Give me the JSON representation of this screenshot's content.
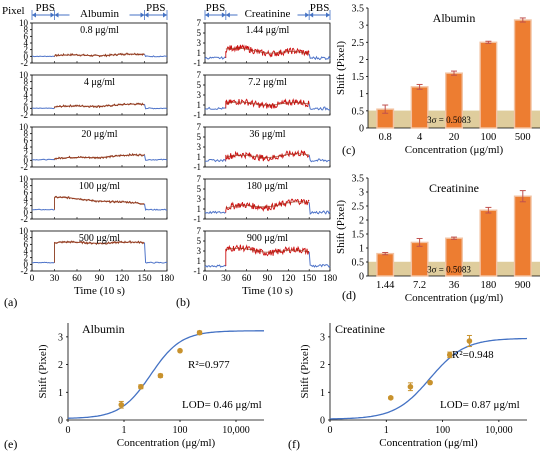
{
  "figure": {
    "panel_labels": [
      "(a)",
      "(b)",
      "(c)",
      "(d)",
      "(e)",
      "(f)"
    ],
    "time_axis": {
      "label": "Time (10 s)",
      "ticks": [
        "0",
        "30",
        "60",
        "90",
        "120",
        "150",
        "180"
      ]
    },
    "pixel_label": "Pixel",
    "phase_labels": {
      "buffer": "PBS",
      "albumin": "Albumin",
      "creatinine": "Creatinine"
    },
    "colors": {
      "baseline": "#4f74c9",
      "albumin_signal": "#8c3b1f",
      "creatinine_signal": "#cc1111",
      "fit_line": "#9a3b1e",
      "bar": "#ed7d31",
      "bar_edge": "#f2c3a4",
      "threshold_band": "#d9c48c",
      "scatter": "#c8922d",
      "curve": "#4472c4",
      "arrow": "#4472c4"
    }
  },
  "chart_data": [
    {
      "panel": "(a)",
      "type": "line",
      "analyte": "Albumin",
      "xlabel": "Time (10 s)",
      "ylabel": "Pixel",
      "xlim": [
        0,
        180
      ],
      "traces": [
        {
          "concentration": "0.8 μg/ml",
          "ylim": [
            -2,
            10
          ],
          "yticks": [
            "-2",
            "0",
            "2",
            "4",
            "6",
            "8",
            "10"
          ],
          "pbs_level": 0,
          "signal_start": 0.2,
          "signal_end": 0.6
        },
        {
          "concentration": "4 μg/ml",
          "ylim": [
            -2,
            10
          ],
          "yticks": [
            "-2",
            "0",
            "2",
            "4",
            "6",
            "8",
            "10"
          ],
          "pbs_level": 0,
          "signal_start": 0.4,
          "signal_end": 1.2
        },
        {
          "concentration": "20 μg/ml",
          "ylim": [
            -2,
            10
          ],
          "yticks": [
            "-2",
            "0",
            "2",
            "4",
            "6",
            "8",
            "10"
          ],
          "pbs_level": 0.2,
          "signal_start": 0.5,
          "signal_end": 1.6
        },
        {
          "concentration": "100 μg/ml",
          "ylim": [
            -2,
            10
          ],
          "yticks": [
            "-2",
            "0",
            "2",
            "4",
            "6",
            "8",
            "10"
          ],
          "pbs_level": 0.8,
          "signal_start": 4.5,
          "signal_end": 2.5
        },
        {
          "concentration": "500 μg/ml",
          "ylim": [
            -2,
            10
          ],
          "yticks": [
            "-2",
            "0",
            "2",
            "4",
            "6",
            "8",
            "10"
          ],
          "pbs_level": 0.5,
          "signal_start": 6.5,
          "signal_end": 6.5
        }
      ]
    },
    {
      "panel": "(b)",
      "type": "line",
      "analyte": "Creatinine",
      "xlabel": "Time (10 s)",
      "xlim": [
        0,
        180
      ],
      "traces": [
        {
          "concentration": "1.44 μg/ml",
          "ylim": [
            -1,
            7
          ],
          "yticks": [
            "-1",
            "1",
            "3",
            "5",
            "7"
          ],
          "pbs_level": 0,
          "signal_start": 1.8,
          "signal_end": 0.8
        },
        {
          "concentration": "7.2 μg/ml",
          "ylim": [
            -1,
            7
          ],
          "yticks": [
            "-1",
            "1",
            "3",
            "5",
            "7"
          ],
          "pbs_level": 0.3,
          "signal_start": 1.3,
          "signal_end": 1.2
        },
        {
          "concentration": "36 μg/ml",
          "ylim": [
            -1,
            7
          ],
          "yticks": [
            "-1",
            "1",
            "3",
            "5",
            "7"
          ],
          "pbs_level": 0.3,
          "signal_start": 1.0,
          "signal_end": 1.4
        },
        {
          "concentration": "180 μg/ml",
          "ylim": [
            -1,
            7
          ],
          "yticks": [
            "-1",
            "1",
            "3",
            "5",
            "7"
          ],
          "pbs_level": 0.3,
          "signal_start": 1.2,
          "signal_end": 2.3
        },
        {
          "concentration": "900 μg/ml",
          "ylim": [
            -1,
            7
          ],
          "yticks": [
            "-1",
            "1",
            "3",
            "5",
            "7"
          ],
          "pbs_level": 0,
          "signal_start": 3.3,
          "signal_end": 2.8
        }
      ]
    },
    {
      "panel": "(c)",
      "type": "bar",
      "title": "Albumin",
      "categories": [
        "0.8",
        "4",
        "20",
        "100",
        "500"
      ],
      "values": [
        0.55,
        1.2,
        1.6,
        2.5,
        3.15
      ],
      "errors": [
        0.12,
        0.07,
        0.06,
        0.03,
        0.06
      ],
      "xlabel": "Concentration (μg/ml)",
      "ylabel": "Shift (Pixel)",
      "ylim": [
        0,
        3.5
      ],
      "yticks": [
        "0",
        "0.5",
        "1",
        "1.5",
        "2",
        "2.5",
        "3",
        "3.5"
      ],
      "threshold": {
        "value": 0.5083,
        "label": "3σ = 0.5083"
      }
    },
    {
      "panel": "(d)",
      "type": "bar",
      "title": "Creatinine",
      "categories": [
        "1.44",
        "7.2",
        "36",
        "180",
        "900"
      ],
      "values": [
        0.8,
        1.2,
        1.35,
        2.35,
        2.85
      ],
      "errors": [
        0.04,
        0.14,
        0.04,
        0.1,
        0.2
      ],
      "xlabel": "Concentration (μg/ml)",
      "ylabel": "Shift (Pixel)",
      "ylim": [
        0,
        3.5
      ],
      "yticks": [
        "0",
        "0.5",
        "1",
        "1.5",
        "2",
        "2.5",
        "3",
        "3.5"
      ],
      "threshold": {
        "value": 0.5083,
        "label": "3σ = 0.5083"
      }
    },
    {
      "panel": "(e)",
      "type": "scatter",
      "title": "Albumin",
      "x": [
        0.8,
        4,
        20,
        100,
        500
      ],
      "y": [
        0.55,
        1.2,
        1.6,
        2.5,
        3.15
      ],
      "errors": [
        0.12,
        0.07,
        0.06,
        0.03,
        0.06
      ],
      "fit": {
        "bottom": 0.05,
        "top": 3.22,
        "ec50": 9,
        "hill": 0.8
      },
      "xlabel": "Concentration (μg/ml)",
      "ylabel": "Shift (Pixel)",
      "xticks": [
        0,
        1,
        100,
        10000
      ],
      "xtick_labels": [
        "0",
        "1",
        "100",
        "10,000"
      ],
      "xlim": [
        0.01,
        100000
      ],
      "ylim": [
        0,
        3.5
      ],
      "yticks": [
        "0",
        "1",
        "2",
        "3"
      ],
      "r2": "R²=0.977",
      "lod": "LOD= 0.46 μg/ml"
    },
    {
      "panel": "(f)",
      "type": "scatter",
      "title": "Creatinine",
      "x": [
        1.44,
        7.2,
        36,
        180,
        900
      ],
      "y": [
        0.8,
        1.2,
        1.35,
        2.35,
        2.85
      ],
      "errors": [
        0.04,
        0.14,
        0.04,
        0.1,
        0.2
      ],
      "fit": {
        "bottom": 0.03,
        "top": 2.95,
        "ec50": 35,
        "hill": 0.7
      },
      "xlabel": "Concentration (μg/ml)",
      "ylabel": "Shift (Pixel)",
      "xticks": [
        0,
        1,
        100,
        10000
      ],
      "xtick_labels": [
        "0",
        "1",
        "100",
        "10,000"
      ],
      "xlim": [
        0.01,
        100000
      ],
      "ylim": [
        0,
        3.5
      ],
      "yticks": [
        "0",
        "1",
        "2",
        "3"
      ],
      "r2": "R²=0.948",
      "lod": "LOD= 0.87 μg/ml"
    }
  ]
}
